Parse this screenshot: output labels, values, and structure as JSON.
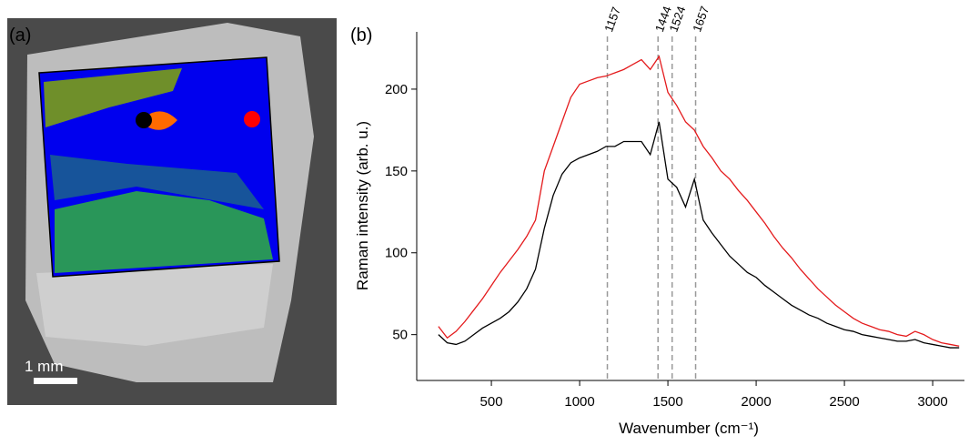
{
  "panel_a": {
    "label": "(a)",
    "scale_bar": "1 mm"
  },
  "chart_data": {
    "type": "line",
    "panel_label": "(b)",
    "x_label": "Wavenumber  (cm⁻¹)",
    "y_label": "Raman intensity  (arb. u.)",
    "xlim": [
      77,
      3180
    ],
    "ylim": [
      22,
      235
    ],
    "xticks": [
      500,
      1000,
      1500,
      2000,
      2500,
      3000
    ],
    "yticks": [
      50,
      100,
      150,
      200
    ],
    "peaks": [
      1157,
      1444,
      1524,
      1657
    ],
    "peak_color": "#999999",
    "x": [
      200,
      250,
      300,
      350,
      400,
      450,
      500,
      550,
      600,
      650,
      700,
      750,
      800,
      850,
      900,
      950,
      1000,
      1050,
      1100,
      1150,
      1200,
      1250,
      1300,
      1350,
      1400,
      1450,
      1500,
      1550,
      1600,
      1650,
      1700,
      1750,
      1800,
      1850,
      1900,
      1950,
      2000,
      2050,
      2100,
      2150,
      2200,
      2250,
      2300,
      2350,
      2400,
      2450,
      2500,
      2550,
      2600,
      2650,
      2700,
      2750,
      2800,
      2850,
      2900,
      2950,
      3000,
      3050,
      3100,
      3150
    ],
    "series": [
      {
        "color": "#e41a1c",
        "values": [
          55,
          48,
          52,
          58,
          65,
          72,
          80,
          88,
          95,
          102,
          110,
          120,
          150,
          165,
          180,
          195,
          203,
          205,
          207,
          208,
          210,
          212,
          215,
          218,
          212,
          220,
          198,
          190,
          180,
          175,
          165,
          158,
          150,
          145,
          138,
          132,
          125,
          118,
          110,
          103,
          97,
          90,
          84,
          78,
          73,
          68,
          64,
          60,
          57,
          55,
          53,
          52,
          50,
          49,
          52,
          50,
          47,
          45,
          44,
          43
        ]
      },
      {
        "color": "#000000",
        "values": [
          50,
          45,
          44,
          46,
          50,
          54,
          57,
          60,
          64,
          70,
          78,
          90,
          115,
          135,
          148,
          155,
          158,
          160,
          162,
          165,
          165,
          168,
          168,
          168,
          160,
          180,
          145,
          140,
          128,
          145,
          120,
          112,
          105,
          98,
          93,
          88,
          85,
          80,
          76,
          72,
          68,
          65,
          62,
          60,
          57,
          55,
          53,
          52,
          50,
          49,
          48,
          47,
          46,
          46,
          47,
          45,
          44,
          43,
          42,
          42
        ]
      }
    ]
  }
}
